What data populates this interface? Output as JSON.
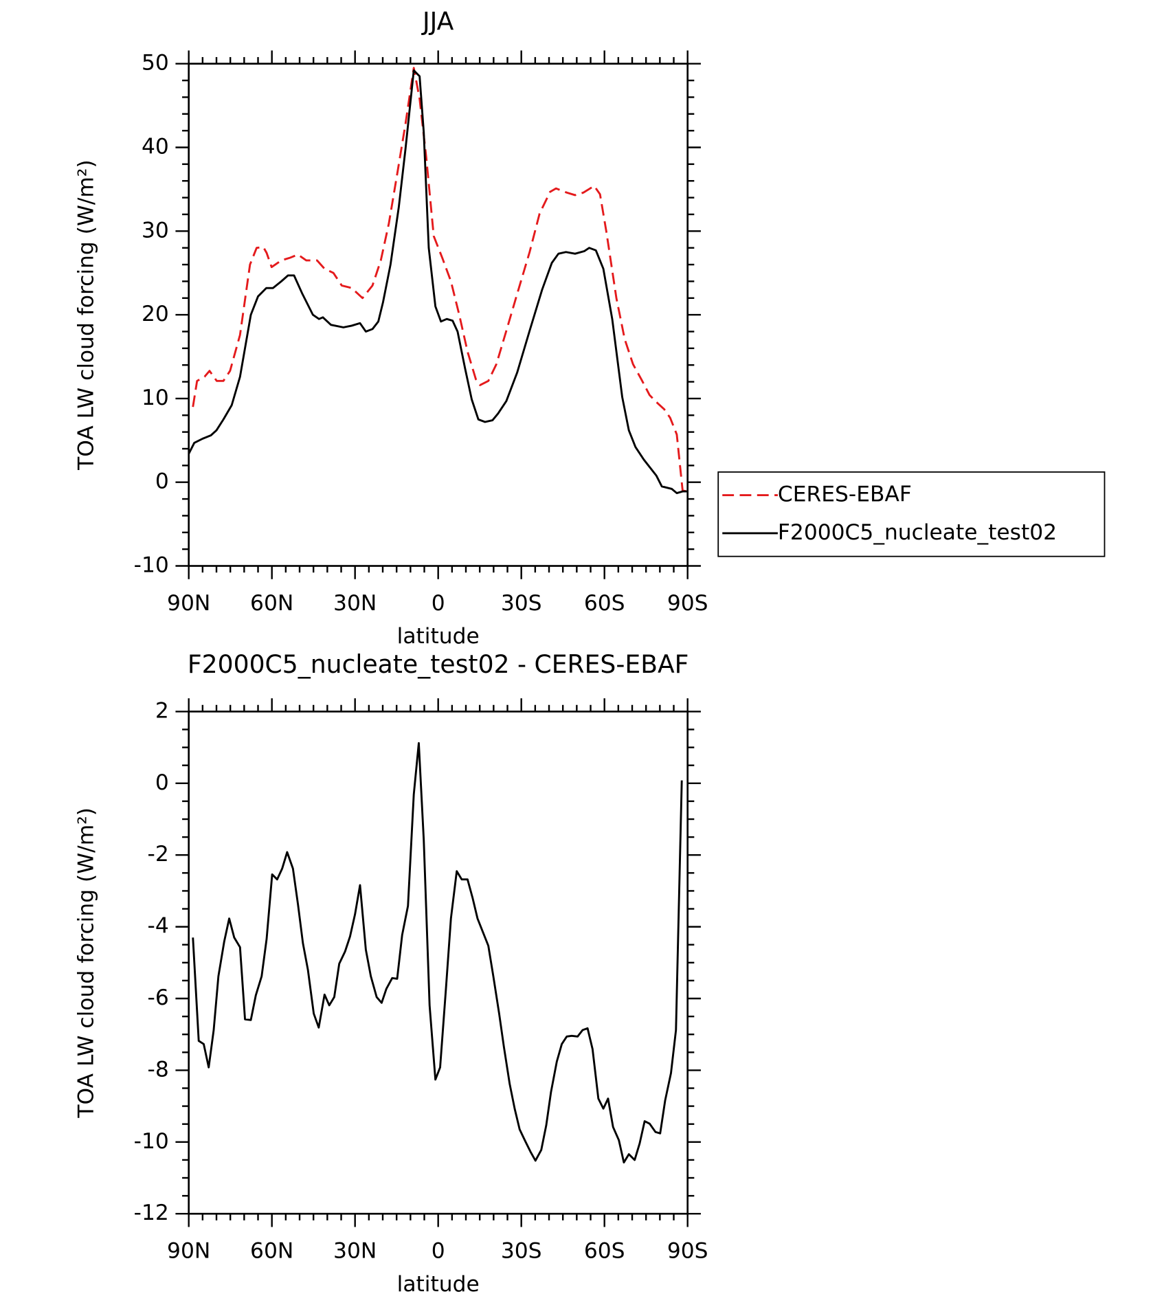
{
  "chart_data": [
    {
      "type": "line",
      "title": "JJA",
      "xlabel": "latitude",
      "ylabel": "TOA LW cloud forcing (W/m²)",
      "xlim": [
        90,
        -90
      ],
      "ylim": [
        -10,
        50
      ],
      "xticks": [
        {
          "value": 90,
          "label": "90N"
        },
        {
          "value": 60,
          "label": "60N"
        },
        {
          "value": 30,
          "label": "30N"
        },
        0,
        {
          "value": -30,
          "label": "30S"
        },
        {
          "value": -60,
          "label": "60S"
        },
        {
          "value": -90,
          "label": "90S"
        }
      ],
      "yticks": [
        -10,
        0,
        10,
        20,
        30,
        40,
        50
      ],
      "legend": "right",
      "series": [
        {
          "name": "CERES-EBAF",
          "color": "#e41a1c",
          "dashed": true,
          "x": [
            88.5,
            87,
            84.3,
            82.5,
            79.9,
            77.5,
            75.1,
            71.5,
            67.9,
            65.5,
            63.1,
            61.9,
            60.1,
            56.6,
            53.6,
            50.6,
            47.6,
            43.7,
            41,
            37.8,
            34.8,
            31.2,
            27.3,
            23.7,
            20.7,
            17.8,
            14.8,
            11.8,
            8.8,
            6.7,
            4.3,
            1.6,
            -1.6,
            -4.6,
            -7.6,
            -10.6,
            -13.6,
            -15.1,
            -18.1,
            -21,
            -24.6,
            -28.5,
            -33,
            -36.6,
            -40.4,
            -42.5,
            -46.4,
            -49.4,
            -52.4,
            -56.3,
            -58.4,
            -60.7,
            -64.3,
            -67.3,
            -70.3,
            -73.3,
            -76.3,
            -79.3,
            -81.6,
            -83.7,
            -86.1,
            -88.2,
            -90
          ],
          "values": [
            9,
            12.1,
            12.6,
            13.3,
            12.1,
            12.1,
            13.3,
            17.6,
            26,
            28,
            28.1,
            27.4,
            25.7,
            26.5,
            26.8,
            27.2,
            26.5,
            26.5,
            25.5,
            25,
            23.5,
            23.2,
            22,
            23.5,
            26.5,
            30.9,
            36.8,
            42.8,
            49.5,
            45.8,
            38.8,
            29.4,
            26.7,
            24,
            20,
            15.6,
            12.3,
            11.6,
            12.1,
            14.1,
            18.1,
            22.5,
            27.5,
            32.1,
            34.7,
            35.1,
            34.6,
            34.3,
            34.6,
            35.4,
            34.4,
            29.9,
            22,
            17.1,
            14.1,
            12.3,
            10.4,
            9.4,
            8.7,
            7.7,
            5.7,
            -1,
            -1.1
          ]
        },
        {
          "name": "F2000C5_nucleate_test02",
          "color": "#000000",
          "dashed": false,
          "x": [
            90,
            88,
            85,
            82,
            80,
            77.5,
            74.5,
            71.5,
            67.6,
            65,
            62,
            59.6,
            56.6,
            54.2,
            52,
            49,
            45.2,
            43,
            41.6,
            38.7,
            34.2,
            31.2,
            28.2,
            26.1,
            23.7,
            21.6,
            19.9,
            17.2,
            14.2,
            11.8,
            8.8,
            6.7,
            5.2,
            3.4,
            1,
            -1,
            -3.1,
            -5.2,
            -7,
            -9.7,
            -12.1,
            -14.5,
            -16.9,
            -19.6,
            -21.6,
            -24.6,
            -28.5,
            -33,
            -37.5,
            -41,
            -43.4,
            -46.1,
            -49.4,
            -52.7,
            -54.5,
            -56.9,
            -59.6,
            -62.8,
            -66.4,
            -68.8,
            -71.2,
            -74.2,
            -78.7,
            -80.7,
            -84.3,
            -86.1,
            -88.2,
            -90
          ],
          "values": [
            3.4,
            4.7,
            5.2,
            5.6,
            6.2,
            7.5,
            9.2,
            12.6,
            20,
            22.2,
            23.2,
            23.2,
            24,
            24.7,
            24.7,
            22.5,
            20,
            19.5,
            19.7,
            18.8,
            18.5,
            18.7,
            19,
            18,
            18.3,
            19.2,
            21.5,
            26,
            32.9,
            39.8,
            49.2,
            48.5,
            41.8,
            28,
            21,
            19.2,
            19.5,
            19.3,
            18,
            13.6,
            9.9,
            7.5,
            7.2,
            7.4,
            8.2,
            9.7,
            13.1,
            18.1,
            23,
            26.2,
            27.3,
            27.5,
            27.3,
            27.6,
            28,
            27.7,
            25.5,
            19.5,
            10.2,
            6.2,
            4.2,
            2.7,
            0.8,
            -0.5,
            -0.8,
            -1.3,
            -1.1,
            -1.1
          ]
        }
      ]
    },
    {
      "type": "line",
      "title": "F2000C5_nucleate_test02 - CERES-EBAF",
      "xlabel": "latitude",
      "ylabel": "TOA LW cloud forcing (W/m²)",
      "xlim": [
        90,
        -90
      ],
      "ylim": [
        -12,
        2
      ],
      "xticks": [
        {
          "value": 90,
          "label": "90N"
        },
        {
          "value": 60,
          "label": "60N"
        },
        {
          "value": 30,
          "label": "30N"
        },
        0,
        {
          "value": -30,
          "label": "30S"
        },
        {
          "value": -60,
          "label": "60S"
        },
        {
          "value": -90,
          "label": "90S"
        }
      ],
      "yticks": [
        -12,
        -10,
        -8,
        -6,
        -4,
        -2,
        0,
        2
      ],
      "series": [
        {
          "color": "#000000",
          "dashed": false,
          "x": [
            88.5,
            86.4,
            84.6,
            82.8,
            81,
            79.3,
            77.2,
            75.4,
            73.6,
            71.5,
            69.7,
            67.6,
            65.8,
            63.7,
            61.9,
            59.9,
            58.1,
            56.3,
            54.5,
            52.4,
            50.6,
            48.8,
            47,
            44.9,
            43.1,
            41,
            39.3,
            37.5,
            35.7,
            33.6,
            31.8,
            30,
            28.2,
            26.1,
            24.3,
            22.2,
            20.4,
            18.7,
            16.6,
            14.8,
            13,
            10.9,
            8.8,
            7,
            5.2,
            3.1,
            1,
            -0.7,
            -2.8,
            -4.6,
            -6.7,
            -8.5,
            -10.6,
            -12.4,
            -14.2,
            -16.3,
            -18.1,
            -19.9,
            -22,
            -23.7,
            -25.8,
            -27.6,
            -29.4,
            -31.5,
            -33.3,
            -35.1,
            -37.2,
            -39,
            -40.7,
            -42.8,
            -44.6,
            -46.4,
            -48.2,
            -50.3,
            -52.1,
            -53.9,
            -55.7,
            -57.8,
            -59.6,
            -61.3,
            -63.1,
            -65.2,
            -67,
            -68.8,
            -70.9,
            -72.7,
            -74.5,
            -76.3,
            -78.4,
            -80.1,
            -81.9,
            -84,
            -85.8,
            -87.9
          ],
          "values": [
            -4.3,
            -7.18,
            -7.27,
            -7.92,
            -6.88,
            -5.38,
            -4.41,
            -3.77,
            -4.3,
            -4.57,
            -6.58,
            -6.6,
            -5.91,
            -5.38,
            -4.34,
            -2.54,
            -2.68,
            -2.38,
            -1.92,
            -2.38,
            -3.37,
            -4.46,
            -5.2,
            -6.42,
            -6.81,
            -5.89,
            -6.19,
            -5.96,
            -5.03,
            -4.69,
            -4.27,
            -3.65,
            -2.84,
            -4.64,
            -5.38,
            -5.96,
            -6.12,
            -5.73,
            -5.43,
            -5.45,
            -4.23,
            -3.42,
            -0.31,
            1.12,
            -1.58,
            -6.19,
            -8.26,
            -7.92,
            -5.73,
            -3.77,
            -2.45,
            -2.68,
            -2.68,
            -3.19,
            -3.77,
            -4.18,
            -4.53,
            -5.38,
            -6.42,
            -7.34,
            -8.38,
            -9.07,
            -9.65,
            -9.99,
            -10.27,
            -10.52,
            -10.22,
            -9.53,
            -8.61,
            -7.76,
            -7.27,
            -7.06,
            -7.04,
            -7.06,
            -6.88,
            -6.83,
            -7.41,
            -8.79,
            -9.07,
            -8.79,
            -9.58,
            -9.95,
            -10.57,
            -10.34,
            -10.5,
            -10.04,
            -9.42,
            -9.49,
            -9.72,
            -9.76,
            -8.84,
            -8.08,
            -6.88,
            0.08
          ]
        }
      ]
    }
  ]
}
